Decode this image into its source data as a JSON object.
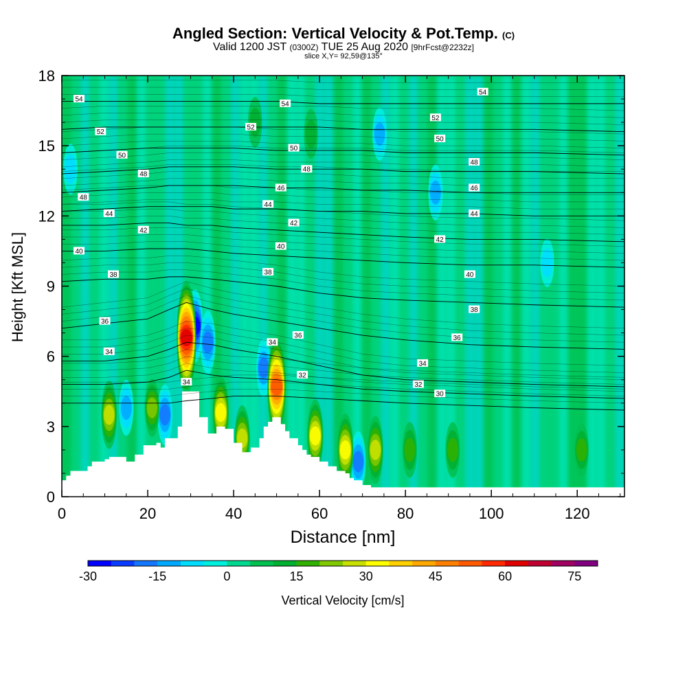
{
  "chart_data": {
    "type": "heatmap",
    "title": "Angled Section: Vertical Velocity & Pot.Temp.",
    "title_suffix": "(C)",
    "subtitle_parts": [
      "Valid 1200 JST",
      "(0300Z)",
      "TUE 25 Aug 2020",
      "[9hrFcst@2232z]"
    ],
    "slice_label": "slice X,Y= 92,59@135°",
    "xlabel": "Distance [nm]",
    "ylabel": "Height [Kft MSL]",
    "xlim": [
      0,
      131
    ],
    "ylim": [
      0,
      18
    ],
    "x_ticks": [
      "0",
      "20",
      "40",
      "60",
      "80",
      "100",
      "120"
    ],
    "y_ticks": [
      "0",
      "3",
      "6",
      "9",
      "12",
      "15",
      "18"
    ],
    "colorbar": {
      "label": "Vertical Velocity [cm/s]",
      "range": [
        -30,
        80
      ],
      "step": 5,
      "tick_labels": [
        "-30",
        "-15",
        "0",
        "15",
        "30",
        "45",
        "60",
        "75"
      ],
      "colors": [
        "#0000ff",
        "#0a3cff",
        "#1478ff",
        "#00a8ff",
        "#00ddff",
        "#00f0e0",
        "#00d890",
        "#00c050",
        "#00b030",
        "#30b000",
        "#80c800",
        "#c8e000",
        "#ffff00",
        "#ffd000",
        "#ffa800",
        "#ff8000",
        "#ff5a00",
        "#ff2800",
        "#e00000",
        "#c00030",
        "#a00060",
        "#800080"
      ]
    },
    "terrain": {
      "x": [
        0,
        1,
        2,
        6,
        7,
        10,
        11,
        15,
        17,
        19,
        22,
        23,
        24,
        27,
        28,
        31,
        32,
        34,
        36,
        38,
        40,
        42,
        44,
        46,
        47,
        48,
        49,
        51,
        52,
        53,
        55,
        56,
        57,
        58,
        60,
        62,
        64,
        66,
        67,
        68,
        70,
        72,
        131
      ],
      "height": [
        0.7,
        0.9,
        1.1,
        1.3,
        1.5,
        1.6,
        1.7,
        1.5,
        1.8,
        2.2,
        2.3,
        2.1,
        2.5,
        3.0,
        4.5,
        4.5,
        3.4,
        2.7,
        3.0,
        2.9,
        2.3,
        1.9,
        2.1,
        2.5,
        3.0,
        3.2,
        3.4,
        3.1,
        2.8,
        2.5,
        2.2,
        2.0,
        1.8,
        1.7,
        1.5,
        1.3,
        1.1,
        1.0,
        0.8,
        0.7,
        0.5,
        0.4,
        0.4
      ]
    },
    "updrafts": [
      {
        "x": 29,
        "z": 6.8,
        "w": 60
      },
      {
        "x": 50,
        "z": 4.7,
        "w": 50
      },
      {
        "x": 37,
        "z": 3.6,
        "w": 28
      },
      {
        "x": 59,
        "z": 2.6,
        "w": 28
      },
      {
        "x": 11,
        "z": 3.5,
        "w": 24
      },
      {
        "x": 66,
        "z": 2.0,
        "w": 28
      },
      {
        "x": 73,
        "z": 2.0,
        "w": 24
      },
      {
        "x": 42,
        "z": 2.5,
        "w": 22
      },
      {
        "x": 21,
        "z": 3.8,
        "w": 16
      },
      {
        "x": 81,
        "z": 2.0,
        "w": 14
      },
      {
        "x": 91,
        "z": 2.0,
        "w": 14
      },
      {
        "x": 121,
        "z": 2.0,
        "w": 12
      },
      {
        "x": 45,
        "z": 16.0,
        "w": 10
      },
      {
        "x": 58,
        "z": 15.5,
        "w": 9
      }
    ],
    "downdrafts": [
      {
        "x": 31,
        "z": 7.3,
        "w": -28
      },
      {
        "x": 34,
        "z": 6.6,
        "w": -20
      },
      {
        "x": 47,
        "z": 5.5,
        "w": -16
      },
      {
        "x": 24,
        "z": 3.5,
        "w": -18
      },
      {
        "x": 15,
        "z": 3.8,
        "w": -14
      },
      {
        "x": 69,
        "z": 1.5,
        "w": -18
      },
      {
        "x": 74,
        "z": 15.5,
        "w": -12
      },
      {
        "x": 87,
        "z": 13.0,
        "w": -14
      },
      {
        "x": 2,
        "z": 14.0,
        "w": -10
      },
      {
        "x": 113,
        "z": 10.0,
        "w": -8
      }
    ],
    "isentropes": [
      {
        "theta": 30,
        "z": [
          4.0,
          4.0,
          4.0,
          4.0,
          4.1,
          4.2,
          4.3,
          4.3,
          4.2,
          4.1,
          4.0,
          3.9,
          3.8,
          3.7
        ]
      },
      {
        "theta": 32,
        "z": [
          4.8,
          4.8,
          4.9,
          5.1,
          5.4,
          5.2,
          5.1,
          5.0,
          4.8,
          4.6,
          4.5,
          4.4,
          4.3,
          4.2
        ]
      },
      {
        "theta": 34,
        "z": [
          5.8,
          5.8,
          6.0,
          6.3,
          6.6,
          6.5,
          6.3,
          6.0,
          5.6,
          5.2,
          5.0,
          4.9,
          4.8,
          4.7
        ]
      },
      {
        "theta": 36,
        "z": [
          7.2,
          7.4,
          7.6,
          8.0,
          8.3,
          8.0,
          7.8,
          7.5,
          7.2,
          6.9,
          6.7,
          6.5,
          6.4,
          6.3
        ]
      },
      {
        "theta": 38,
        "z": [
          9.2,
          9.3,
          9.3,
          9.4,
          9.4,
          9.3,
          9.2,
          9.0,
          8.7,
          8.5,
          8.4,
          8.3,
          8.2,
          8.1
        ]
      },
      {
        "theta": 40,
        "z": [
          10.5,
          10.5,
          10.6,
          10.6,
          10.6,
          10.5,
          10.4,
          10.3,
          10.2,
          10.1,
          10.0,
          9.9,
          9.9,
          9.8
        ]
      },
      {
        "theta": 42,
        "z": [
          11.6,
          11.6,
          11.7,
          11.7,
          11.6,
          11.6,
          11.5,
          11.4,
          11.3,
          11.2,
          11.1,
          11.0,
          11.0,
          10.9
        ]
      },
      {
        "theta": 44,
        "z": [
          12.2,
          12.3,
          12.4,
          12.4,
          12.4,
          12.4,
          12.3,
          12.3,
          12.2,
          12.2,
          12.1,
          12.1,
          12.0,
          12.0
        ]
      },
      {
        "theta": 46,
        "z": [
          13.0,
          13.1,
          13.2,
          13.3,
          13.3,
          13.3,
          13.3,
          13.2,
          13.2,
          13.1,
          13.1,
          13.0,
          13.0,
          13.0
        ]
      },
      {
        "theta": 48,
        "z": [
          13.8,
          13.9,
          14.0,
          14.1,
          14.1,
          14.1,
          14.1,
          14.0,
          14.0,
          14.0,
          13.9,
          13.9,
          13.9,
          13.8
        ]
      },
      {
        "theta": 50,
        "z": [
          14.7,
          14.8,
          14.9,
          14.9,
          14.9,
          14.9,
          14.9,
          14.8,
          14.8,
          14.8,
          14.7,
          14.7,
          14.7,
          14.6
        ]
      },
      {
        "theta": 52,
        "z": [
          15.7,
          15.8,
          15.8,
          15.8,
          15.8,
          15.8,
          15.8,
          15.8,
          15.8,
          15.7,
          15.7,
          15.7,
          15.7,
          15.6
        ]
      },
      {
        "theta": 54,
        "z": [
          16.9,
          16.9,
          16.9,
          16.9,
          16.9,
          16.9,
          16.9,
          16.9,
          16.8,
          16.8,
          16.8,
          16.8,
          16.8,
          16.8
        ]
      }
    ],
    "isentrope_x": [
      0,
      10,
      20,
      25,
      29,
      35,
      40,
      50,
      60,
      70,
      80,
      95,
      110,
      131
    ],
    "contour_labels": [
      {
        "text": "54",
        "x": 4,
        "z": 17.0
      },
      {
        "text": "54",
        "x": 52,
        "z": 16.8
      },
      {
        "text": "54",
        "x": 98,
        "z": 17.3
      },
      {
        "text": "52",
        "x": 9,
        "z": 15.6
      },
      {
        "text": "52",
        "x": 44,
        "z": 15.8
      },
      {
        "text": "52",
        "x": 87,
        "z": 16.2
      },
      {
        "text": "50",
        "x": 14,
        "z": 14.6
      },
      {
        "text": "50",
        "x": 54,
        "z": 14.9
      },
      {
        "text": "50",
        "x": 88,
        "z": 15.3
      },
      {
        "text": "48",
        "x": 19,
        "z": 13.8
      },
      {
        "text": "48",
        "x": 57,
        "z": 14.0
      },
      {
        "text": "48",
        "x": 96,
        "z": 14.3
      },
      {
        "text": "48",
        "x": 5,
        "z": 12.8
      },
      {
        "text": "46",
        "x": 51,
        "z": 13.2
      },
      {
        "text": "46",
        "x": 96,
        "z": 13.2
      },
      {
        "text": "44",
        "x": 11,
        "z": 12.1
      },
      {
        "text": "44",
        "x": 48,
        "z": 12.5
      },
      {
        "text": "44",
        "x": 96,
        "z": 12.1
      },
      {
        "text": "42",
        "x": 19,
        "z": 11.4
      },
      {
        "text": "42",
        "x": 54,
        "z": 11.7
      },
      {
        "text": "42",
        "x": 88,
        "z": 11.0
      },
      {
        "text": "40",
        "x": 4,
        "z": 10.5
      },
      {
        "text": "40",
        "x": 51,
        "z": 10.7
      },
      {
        "text": "40",
        "x": 95,
        "z": 9.5
      },
      {
        "text": "38",
        "x": 12,
        "z": 9.5
      },
      {
        "text": "38",
        "x": 48,
        "z": 9.6
      },
      {
        "text": "38",
        "x": 96,
        "z": 8.0
      },
      {
        "text": "36",
        "x": 10,
        "z": 7.5
      },
      {
        "text": "36",
        "x": 55,
        "z": 6.9
      },
      {
        "text": "36",
        "x": 92,
        "z": 6.8
      },
      {
        "text": "34",
        "x": 11,
        "z": 6.2
      },
      {
        "text": "34",
        "x": 49,
        "z": 6.6
      },
      {
        "text": "34",
        "x": 84,
        "z": 5.7
      },
      {
        "text": "34",
        "x": 29,
        "z": 4.9
      },
      {
        "text": "32",
        "x": 56,
        "z": 5.2
      },
      {
        "text": "32",
        "x": 83,
        "z": 4.8
      },
      {
        "text": "30",
        "x": 88,
        "z": 4.4
      }
    ]
  }
}
